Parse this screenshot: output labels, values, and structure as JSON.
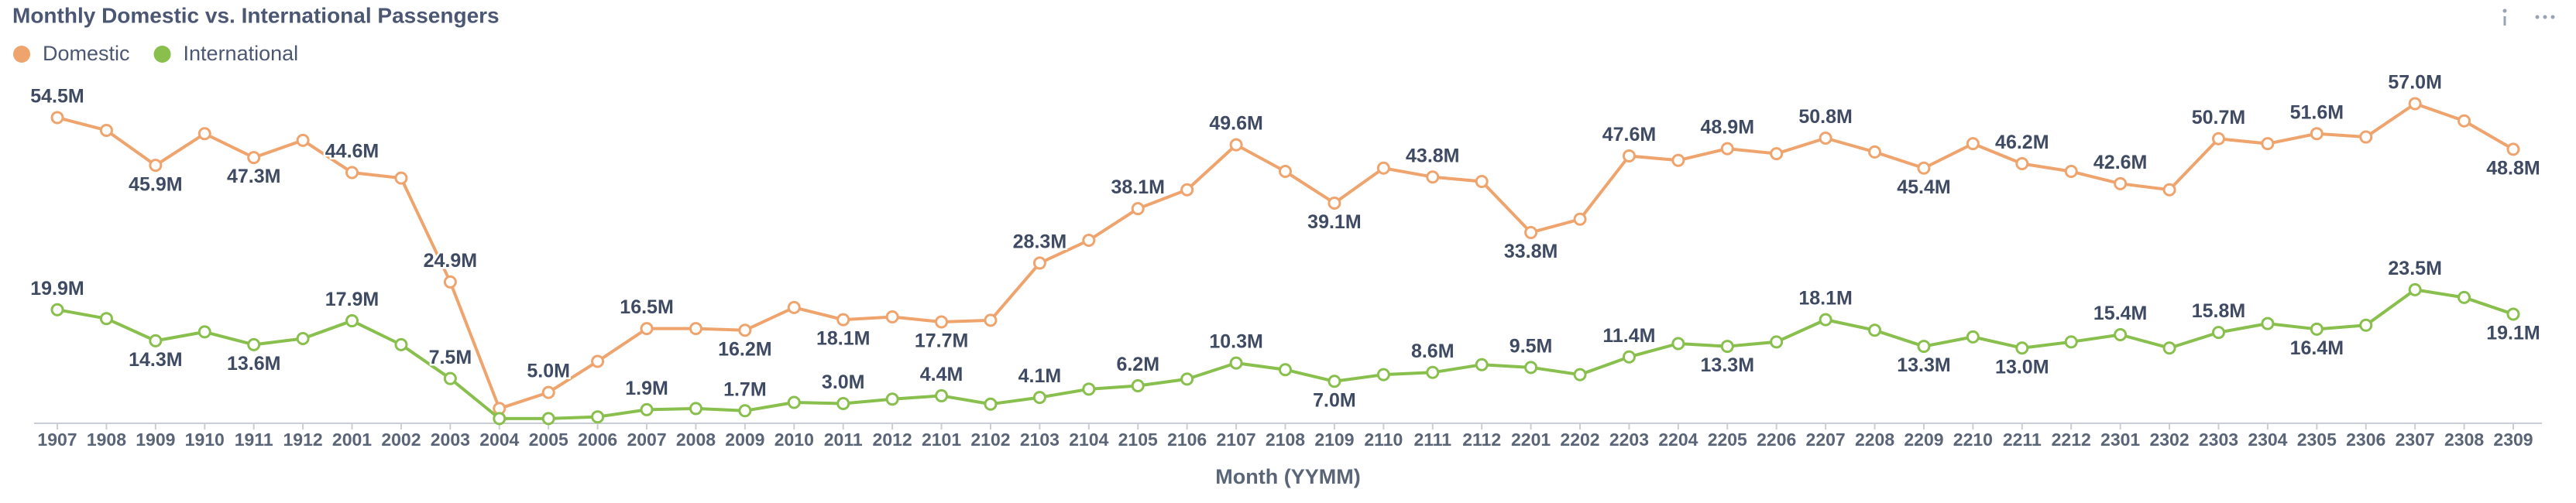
{
  "chart_data": {
    "type": "line",
    "title": "Monthly Domestic vs. International Passengers",
    "x_label": "Month (YYMM)",
    "legend": "top-left",
    "categories": [
      "1907",
      "1908",
      "1909",
      "1910",
      "1911",
      "1912",
      "2001",
      "2002",
      "2003",
      "2004",
      "2005",
      "2006",
      "2007",
      "2008",
      "2009",
      "2010",
      "2011",
      "2012",
      "2101",
      "2102",
      "2103",
      "2104",
      "2105",
      "2106",
      "2107",
      "2108",
      "2109",
      "2110",
      "2111",
      "2112",
      "2201",
      "2202",
      "2203",
      "2204",
      "2205",
      "2206",
      "2207",
      "2208",
      "2209",
      "2210",
      "2211",
      "2212",
      "2301",
      "2302",
      "2303",
      "2304",
      "2305",
      "2306",
      "2307",
      "2308",
      "2309"
    ],
    "series": [
      {
        "name": "Domestic",
        "color": "#efa46e",
        "values": [
          54.5,
          52.2,
          45.9,
          51.6,
          47.3,
          50.4,
          44.6,
          43.6,
          24.9,
          2.1,
          5.0,
          10.6,
          16.5,
          16.5,
          16.2,
          20.3,
          18.1,
          18.6,
          17.7,
          18.0,
          28.3,
          32.4,
          38.1,
          41.5,
          49.6,
          44.8,
          39.1,
          45.4,
          43.8,
          43.0,
          33.8,
          36.2,
          47.6,
          46.8,
          48.9,
          48.0,
          50.8,
          48.3,
          45.4,
          49.8,
          46.2,
          44.8,
          42.6,
          41.5,
          50.7,
          49.8,
          51.6,
          51.0,
          57.0,
          53.9,
          48.8
        ],
        "value_labels": [
          "54.5M",
          null,
          "45.9M",
          null,
          "47.3M",
          null,
          "44.6M",
          null,
          "24.9M",
          null,
          "5.0M",
          null,
          "16.5M",
          null,
          "16.2M",
          null,
          "18.1M",
          null,
          "17.7M",
          null,
          "28.3M",
          null,
          "38.1M",
          null,
          "49.6M",
          null,
          "39.1M",
          null,
          "43.8M",
          null,
          "33.8M",
          null,
          "47.6M",
          null,
          "48.9M",
          null,
          "50.8M",
          null,
          "45.4M",
          null,
          "46.2M",
          null,
          "42.6M",
          null,
          "50.7M",
          null,
          "51.6M",
          null,
          "57.0M",
          null,
          "48.8M"
        ]
      },
      {
        "name": "International",
        "color": "#88bf4d",
        "values": [
          19.9,
          18.3,
          14.3,
          15.9,
          13.6,
          14.7,
          17.9,
          13.6,
          7.5,
          0.3,
          0.3,
          0.6,
          1.9,
          2.1,
          1.7,
          3.2,
          3.0,
          3.8,
          4.4,
          2.9,
          4.1,
          5.6,
          6.2,
          7.4,
          10.3,
          9.1,
          7.0,
          8.2,
          8.6,
          10.0,
          9.5,
          8.2,
          11.4,
          13.8,
          13.3,
          14.1,
          18.1,
          16.2,
          13.3,
          15.0,
          13.0,
          14.1,
          15.4,
          13.0,
          15.8,
          17.4,
          16.4,
          17.1,
          23.5,
          22.1,
          19.1
        ],
        "value_labels": [
          "19.9M",
          null,
          "14.3M",
          null,
          "13.6M",
          null,
          "17.9M",
          null,
          "7.5M",
          null,
          null,
          null,
          "1.9M",
          null,
          "1.7M",
          null,
          "3.0M",
          null,
          "4.4M",
          null,
          "4.1M",
          null,
          "6.2M",
          null,
          "10.3M",
          null,
          "7.0M",
          null,
          "8.6M",
          null,
          "9.5M",
          null,
          "11.4M",
          null,
          "13.3M",
          null,
          "18.1M",
          null,
          "13.3M",
          null,
          "13.0M",
          null,
          "15.4M",
          null,
          "15.8M",
          null,
          "16.4M",
          null,
          "23.5M",
          null,
          "19.1M"
        ]
      }
    ]
  }
}
